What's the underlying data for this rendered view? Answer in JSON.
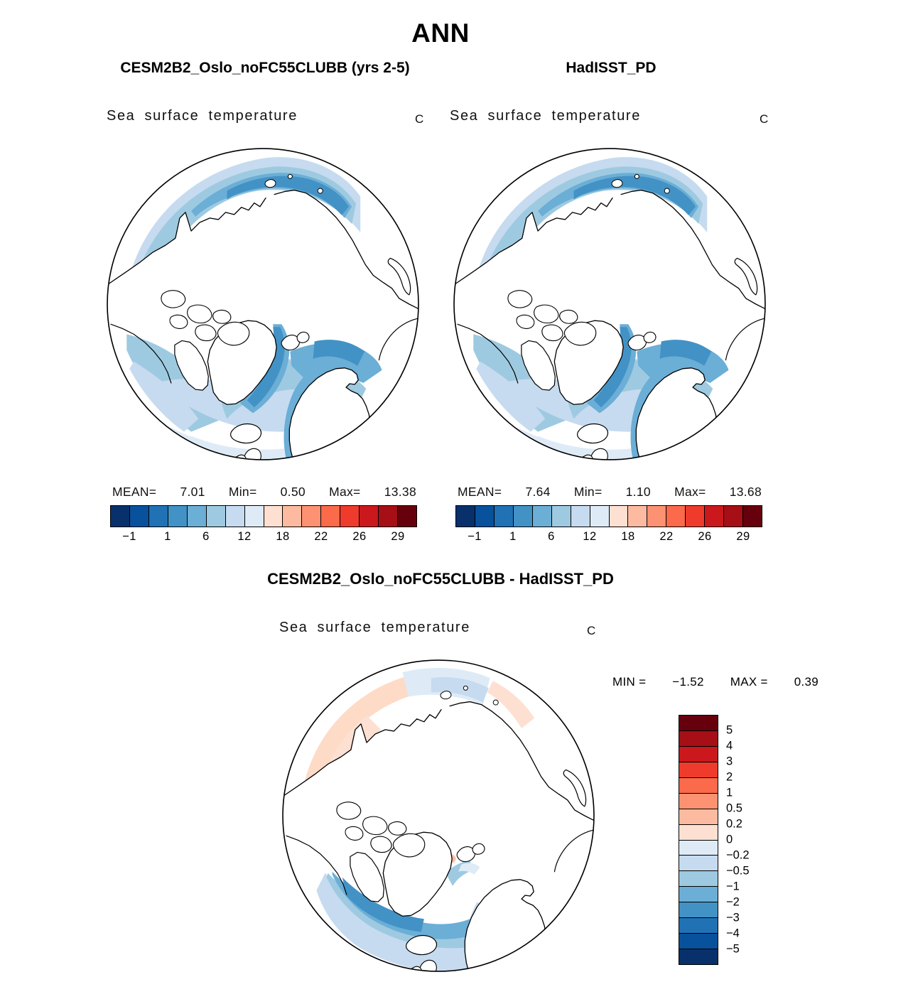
{
  "title": "ANN",
  "panels": [
    {
      "header": "CESM2B2_Oslo_noFC55CLUBB (yrs 2-5)",
      "variable": "Sea surface temperature",
      "units": "C",
      "stats": {
        "mean_label": "MEAN=",
        "mean": "7.01",
        "min_label": "Min=",
        "min": "0.50",
        "max_label": "Max=",
        "max": "13.38"
      }
    },
    {
      "header": "HadISST_PD",
      "variable": "Sea surface temperature",
      "units": "C",
      "stats": {
        "mean_label": "MEAN=",
        "mean": "7.64",
        "min_label": "Min=",
        "min": "1.10",
        "max_label": "Max=",
        "max": "13.68"
      }
    }
  ],
  "diff": {
    "header": "CESM2B2_Oslo_noFC55CLUBB - HadISST_PD",
    "variable": "Sea surface temperature",
    "units": "C",
    "min_label": "MIN =",
    "min": "−1.52",
    "max_label": "MAX =",
    "max": "0.39"
  },
  "sst_colorbar": {
    "colors": [
      "#08306b",
      "#08519c",
      "#2171b5",
      "#4292c6",
      "#6baed6",
      "#9ecae1",
      "#c6dbef",
      "#deebf7",
      "#fee0d2",
      "#fcbba1",
      "#fc9272",
      "#fb6a4a",
      "#ef3b2c",
      "#cb181d",
      "#a50f15",
      "#67000d"
    ],
    "tick_labels": [
      "−1",
      "1",
      "6",
      "12",
      "18",
      "22",
      "26",
      "29"
    ]
  },
  "diff_colorbar": {
    "colors": [
      "#67000d",
      "#a50f15",
      "#cb181d",
      "#ef3b2c",
      "#fb6a4a",
      "#fc9272",
      "#fcbba1",
      "#fee0d2",
      "#deebf7",
      "#c6dbef",
      "#9ecae1",
      "#6baed6",
      "#4292c6",
      "#2171b5",
      "#08519c",
      "#08306b"
    ],
    "tick_labels": [
      "5",
      "4",
      "3",
      "2",
      "1",
      "0.5",
      "0.2",
      "0",
      "−0.2",
      "−0.5",
      "−1",
      "−2",
      "−3",
      "−4",
      "−5"
    ]
  },
  "chart_data": [
    {
      "type": "heatmap",
      "title": "Sea surface temperature",
      "dataset": "CESM2B2_Oslo_noFC55CLUBB (yrs 2-5)",
      "projection": "north-polar-stereographic",
      "units": "C",
      "mean": 7.01,
      "min": 0.5,
      "max": 13.38,
      "color_levels": [
        -1,
        1,
        6,
        12,
        18,
        22,
        26,
        29
      ],
      "legend_position": "bottom"
    },
    {
      "type": "heatmap",
      "title": "Sea surface temperature",
      "dataset": "HadISST_PD",
      "projection": "north-polar-stereographic",
      "units": "C",
      "mean": 7.64,
      "min": 1.1,
      "max": 13.68,
      "color_levels": [
        -1,
        1,
        6,
        12,
        18,
        22,
        26,
        29
      ],
      "legend_position": "bottom"
    },
    {
      "type": "heatmap",
      "title": "Sea surface temperature",
      "dataset": "CESM2B2_Oslo_noFC55CLUBB - HadISST_PD",
      "projection": "north-polar-stereographic",
      "units": "C",
      "min": -1.52,
      "max": 0.39,
      "color_levels": [
        5,
        4,
        3,
        2,
        1,
        0.5,
        0.2,
        0,
        -0.2,
        -0.5,
        -1,
        -2,
        -3,
        -4,
        -5
      ],
      "legend_position": "right"
    }
  ]
}
